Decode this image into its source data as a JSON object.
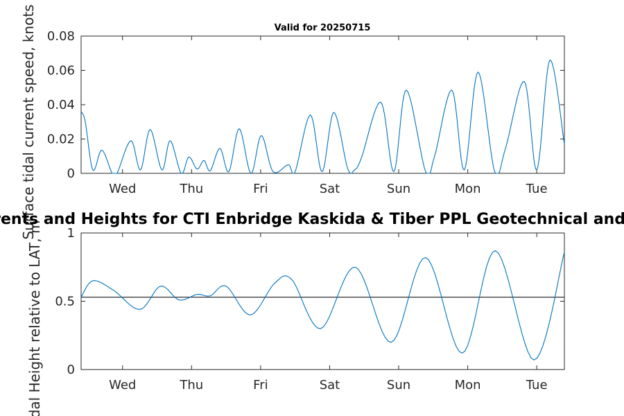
{
  "figure": {
    "top_title": "Valid for 20250715",
    "main_title": "Surface Tidal Currents and Heights for CTI Enbridge  Kaskida & Tiber PPL Geotechnical and Geophysical Survey"
  },
  "chart_data": [
    {
      "type": "line",
      "title": "Valid for 20250715",
      "ylabel": "Surface tidal current speed, knots",
      "xlim": [
        0,
        7
      ],
      "ylim": [
        0,
        0.08
      ],
      "x_ticks": [
        0.6,
        1.6,
        2.6,
        3.6,
        4.6,
        5.6,
        6.6
      ],
      "x_ticklabels": [
        "Wed",
        "Thu",
        "Fri",
        "Sat",
        "Sun",
        "Mon",
        "Tue"
      ],
      "y_ticks": [
        0,
        0.02,
        0.04,
        0.06,
        0.08
      ],
      "y_ticklabels": [
        "0",
        "0.02",
        "0.04",
        "0.06",
        "0.08"
      ],
      "line_color": "#0072BD",
      "grid": false,
      "series": [
        {
          "points": [
            [
              0,
              0.036
            ],
            [
              0.06,
              0.03
            ],
            [
              0.17,
              0.002
            ],
            [
              0.3,
              0.0135
            ],
            [
              0.45,
              0
            ],
            [
              0.52,
              0
            ],
            [
              0.72,
              0.019
            ],
            [
              0.86,
              0.002
            ],
            [
              1.0,
              0.0255
            ],
            [
              1.17,
              0.002
            ],
            [
              1.29,
              0.019
            ],
            [
              1.45,
              0
            ],
            [
              1.56,
              0.0095
            ],
            [
              1.68,
              0.0025
            ],
            [
              1.78,
              0.0075
            ],
            [
              1.87,
              0.0015
            ],
            [
              2.01,
              0.0145
            ],
            [
              2.14,
              0.001
            ],
            [
              2.29,
              0.026
            ],
            [
              2.46,
              0
            ],
            [
              2.61,
              0.022
            ],
            [
              2.78,
              0.001
            ],
            [
              3.0,
              0.005
            ],
            [
              3.1,
              0.001
            ],
            [
              3.32,
              0.034
            ],
            [
              3.49,
              0.001
            ],
            [
              3.66,
              0.0355
            ],
            [
              3.86,
              0.003
            ],
            [
              3.96,
              0.002
            ],
            [
              4.06,
              0.009
            ],
            [
              4.34,
              0.0415
            ],
            [
              4.53,
              0.001
            ],
            [
              4.71,
              0.0485
            ],
            [
              4.99,
              0.001
            ],
            [
              5.12,
              0.01
            ],
            [
              5.37,
              0.0485
            ],
            [
              5.55,
              0.002
            ],
            [
              5.75,
              0.059
            ],
            [
              5.99,
              0.001
            ],
            [
              6.15,
              0.015
            ],
            [
              6.42,
              0.0535
            ],
            [
              6.6,
              0.002
            ],
            [
              6.79,
              0.066
            ],
            [
              7.0,
              0.017
            ]
          ]
        }
      ]
    },
    {
      "type": "line",
      "title": "Surface Tidal Currents and Heights for CTI Enbridge  Kaskida & Tiber PPL Geotechnical and Geophysical Survey",
      "ylabel": "Tidal Height relative to LAT, m",
      "xlim": [
        0,
        7
      ],
      "ylim": [
        0,
        1
      ],
      "x_ticks": [
        0.6,
        1.6,
        2.6,
        3.6,
        4.6,
        5.6,
        6.6
      ],
      "x_ticklabels": [
        "Wed",
        "Thu",
        "Fri",
        "Sat",
        "Sun",
        "Mon",
        "Tue"
      ],
      "y_ticks": [
        0,
        0.5,
        1
      ],
      "y_ticklabels": [
        "0",
        "0.5",
        "1"
      ],
      "reference_line": 0.53,
      "line_color": "#0072BD",
      "grid": false,
      "series": [
        {
          "points": [
            [
              0,
              0.53
            ],
            [
              0.17,
              0.65
            ],
            [
              0.47,
              0.58
            ],
            [
              0.85,
              0.44
            ],
            [
              1.15,
              0.61
            ],
            [
              1.42,
              0.51
            ],
            [
              1.68,
              0.55
            ],
            [
              1.87,
              0.54
            ],
            [
              2.1,
              0.61
            ],
            [
              2.45,
              0.4
            ],
            [
              2.8,
              0.63
            ],
            [
              3.05,
              0.66
            ],
            [
              3.47,
              0.3
            ],
            [
              3.97,
              0.75
            ],
            [
              4.49,
              0.2
            ],
            [
              4.99,
              0.82
            ],
            [
              5.52,
              0.12
            ],
            [
              6.0,
              0.87
            ],
            [
              6.56,
              0.07
            ],
            [
              7.0,
              0.86
            ]
          ]
        }
      ]
    }
  ]
}
